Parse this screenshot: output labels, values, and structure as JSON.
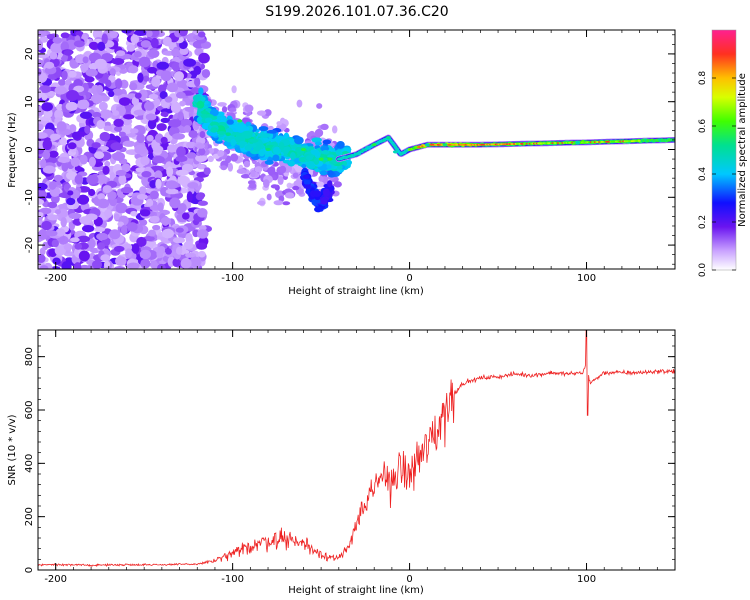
{
  "figure_title": "S199.2026.101.07.36.C20",
  "chart_data": [
    {
      "type": "heatmap",
      "xlabel": "Height of straight line (km)",
      "ylabel": "Frequency (Hz)",
      "xlim": [
        -210,
        150
      ],
      "ylim": [
        -25,
        25
      ],
      "x_ticks": [
        -200,
        -100,
        0,
        100
      ],
      "y_ticks": [
        -20,
        -10,
        0,
        10,
        20
      ],
      "colorbar": {
        "label": "Normalized spectral amplitude",
        "range": [
          0,
          1
        ],
        "ticks": [
          0.0,
          0.2,
          0.4,
          0.6,
          0.8
        ]
      },
      "signal_ridge": {
        "description_points_km_hz": [
          [
            -120,
            10
          ],
          [
            -110,
            5
          ],
          [
            -100,
            3
          ],
          [
            -80,
            1
          ],
          [
            -60,
            -1
          ],
          [
            -50,
            -2
          ],
          [
            -40,
            -2
          ],
          [
            -30,
            -1
          ],
          [
            -20,
            1
          ],
          [
            -12,
            2.5
          ],
          [
            -5,
            -1
          ],
          [
            0,
            0
          ],
          [
            10,
            1
          ],
          [
            40,
            1
          ],
          [
            100,
            1.5
          ],
          [
            150,
            2
          ]
        ],
        "broad_lobe_km_hz": [
          [
            -60,
            -5
          ],
          [
            -50,
            -12
          ],
          [
            -45,
            -8
          ]
        ]
      }
    },
    {
      "type": "line",
      "xlabel": "Height of straight line (km)",
      "ylabel": "SNR (10 * v/v)",
      "xlim": [
        -210,
        150
      ],
      "ylim": [
        0,
        900
      ],
      "x_ticks": [
        -200,
        -100,
        0,
        100
      ],
      "y_ticks": [
        0,
        200,
        400,
        600,
        800
      ],
      "series": [
        {
          "name": "SNR",
          "color": "#ee2222",
          "x": [
            -210,
            -200,
            -180,
            -160,
            -140,
            -120,
            -110,
            -100,
            -90,
            -80,
            -70,
            -60,
            -50,
            -40,
            -35,
            -30,
            -25,
            -20,
            -15,
            -10,
            -5,
            0,
            5,
            10,
            15,
            20,
            25,
            30,
            40,
            50,
            60,
            70,
            80,
            90,
            98,
            100,
            102,
            110,
            120,
            130,
            140,
            150
          ],
          "values": [
            20,
            20,
            18,
            20,
            20,
            22,
            35,
            60,
            90,
            110,
            120,
            100,
            60,
            40,
            80,
            180,
            240,
            300,
            360,
            330,
            380,
            350,
            420,
            460,
            520,
            600,
            660,
            700,
            720,
            725,
            735,
            730,
            740,
            735,
            740,
            780,
            700,
            740,
            740,
            740,
            745,
            745
          ]
        }
      ]
    }
  ]
}
